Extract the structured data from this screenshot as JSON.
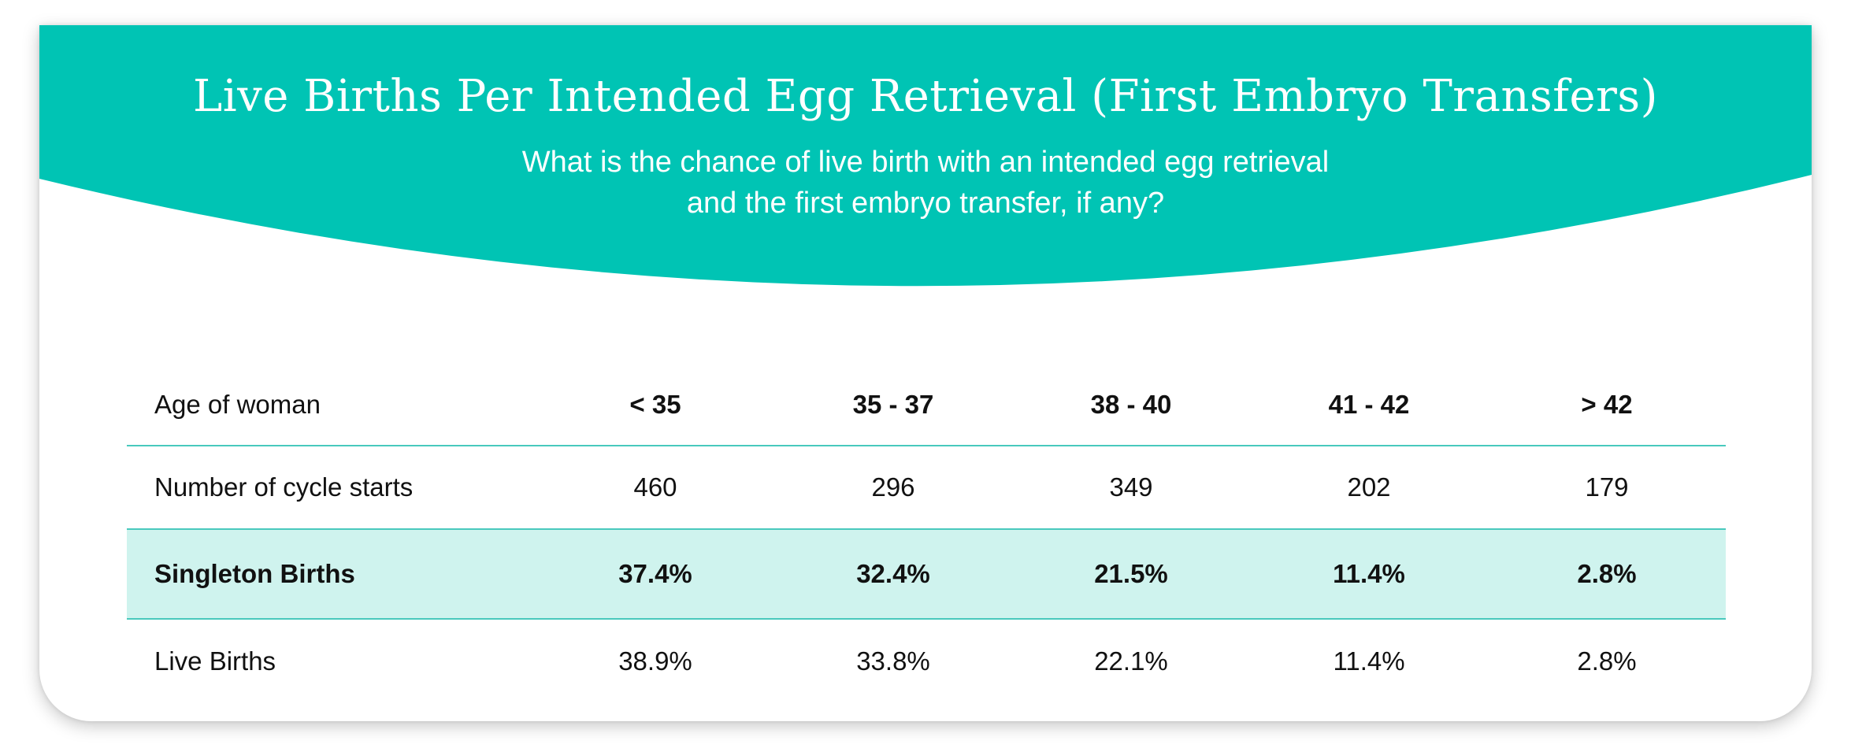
{
  "colors": {
    "banner": "#00c4b4",
    "highlight_row": "#cff3ee",
    "divider": "#49c9bd",
    "text": "#111111"
  },
  "header": {
    "title": "Live Births Per Intended Egg Retrieval (First Embryo Transfers)",
    "subtitle_line1": "What is the chance of live birth with an intended egg retrieval",
    "subtitle_line2": "and the first embryo transfer, if any?"
  },
  "table": {
    "header_label": "Age of woman",
    "age_groups": [
      "< 35",
      "35 - 37",
      "38 - 40",
      "41 - 42",
      ">  42"
    ],
    "rows": [
      {
        "label": "Number of cycle starts",
        "values": [
          "460",
          "296",
          "349",
          "202",
          "179"
        ]
      },
      {
        "label": "Singleton Births",
        "values": [
          "37.4%",
          "32.4%",
          "21.5%",
          "11.4%",
          "2.8%"
        ]
      },
      {
        "label": "Live Births",
        "values": [
          "38.9%",
          "33.8%",
          "22.1%",
          "11.4%",
          "2.8%"
        ]
      }
    ]
  }
}
